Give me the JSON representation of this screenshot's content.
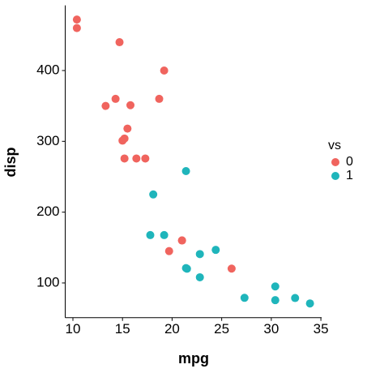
{
  "chart_data": {
    "type": "scatter",
    "x_label": "mpg",
    "y_label": "disp",
    "legend_title": "vs",
    "xlim": [
      9.225,
      35.075
    ],
    "ylim": [
      51.055,
      492.045
    ],
    "xticks": [
      10,
      15,
      20,
      25,
      30,
      35
    ],
    "yticks": [
      100,
      200,
      300,
      400
    ],
    "grid": false,
    "legend_position": "right",
    "series": [
      {
        "name": "0",
        "color": "#f0645e",
        "x": [
          21.0,
          21.0,
          18.7,
          14.3,
          16.4,
          17.3,
          15.2,
          10.4,
          10.4,
          14.7,
          15.5,
          15.2,
          13.3,
          19.2,
          26.0,
          15.8,
          19.7,
          15.0
        ],
        "values": [
          160,
          160,
          360,
          360,
          275.8,
          275.8,
          275.8,
          472,
          460,
          440,
          318,
          304,
          350,
          400,
          120.3,
          351,
          145,
          301
        ]
      },
      {
        "name": "1",
        "color": "#1fb5bb",
        "x": [
          22.8,
          21.4,
          18.1,
          24.4,
          22.8,
          19.2,
          17.8,
          32.4,
          30.4,
          33.9,
          21.5,
          27.3,
          30.4,
          21.4
        ],
        "values": [
          108,
          258,
          225,
          146.7,
          140.8,
          167.6,
          167.6,
          78.7,
          75.7,
          71.1,
          120.1,
          79,
          95.1,
          121
        ]
      }
    ]
  }
}
